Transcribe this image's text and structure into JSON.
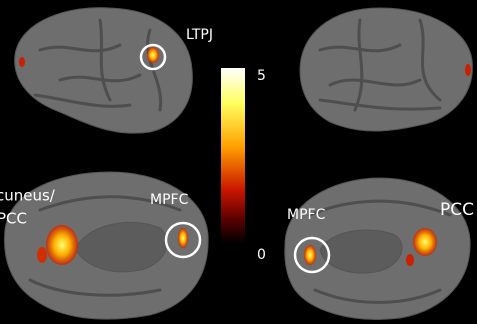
{
  "labels": {
    "ltpj": "LTPJ",
    "mpfc_left": "MPFC",
    "precuneus": [
      "cuneus/",
      "PCC"
    ],
    "mpfc_right": "MPFC",
    "pcc_right": "PCC"
  },
  "colorbar": {
    "ticks": [
      5,
      0
    ]
  }
}
